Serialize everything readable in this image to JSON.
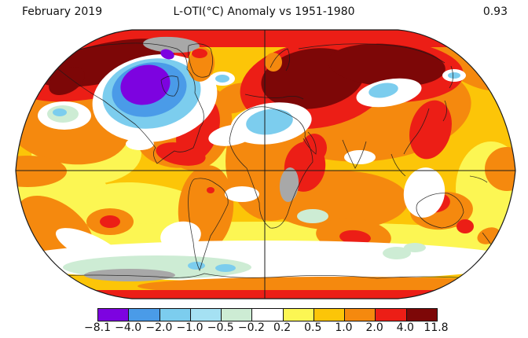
{
  "header": {
    "date_label": "February 2019",
    "title": "L-OTI(°C) Anomaly vs 1951-1980",
    "mean_value": "0.93"
  },
  "palette": {
    "purple": "#7d03e0",
    "blue": "#4a9be8",
    "lightblue": "#7ccdee",
    "paleblue": "#a5e1f3",
    "palegreen": "#cdecd4",
    "white": "#ffffff",
    "yellow": "#fcf653",
    "gold": "#fcc508",
    "orange": "#f5890e",
    "red": "#ec1e16",
    "darkred": "#7d0707",
    "gray": "#a8a8a8",
    "line": "#1a1a1a"
  },
  "colorbar": {
    "tick_labels": [
      "−8.1",
      "−4.0",
      "−2.0",
      "−1.0",
      "−0.5",
      "−0.2",
      "0.2",
      "0.5",
      "1.0",
      "2.0",
      "4.0",
      "11.8"
    ],
    "segment_colors": [
      "#7d03e0",
      "#4a9be8",
      "#7ccdee",
      "#a5e1f3",
      "#cdecd4",
      "#ffffff",
      "#fcf653",
      "#fcc508",
      "#f5890e",
      "#ec1e16",
      "#7d0707"
    ]
  },
  "chart_data": {
    "type": "heatmap",
    "title": "L-OTI(°C) Anomaly vs 1951-1980",
    "period": "February 2019",
    "global_mean_anomaly": 0.93,
    "units": "°C",
    "baseline_period": "1951-1980",
    "projection": "robinson",
    "legend_position": "bottom",
    "scale_boundaries_c": [
      -8.1,
      -4.0,
      -2.0,
      -1.0,
      -0.5,
      -0.2,
      0.2,
      0.5,
      1.0,
      2.0,
      4.0,
      11.8
    ],
    "scale_colors": [
      "#7d03e0",
      "#4a9be8",
      "#7ccdee",
      "#a5e1f3",
      "#cdecd4",
      "#ffffff",
      "#fcf653",
      "#fcc508",
      "#f5890e",
      "#ec1e16",
      "#7d0707"
    ],
    "no_data_color": "#a8a8a8",
    "region_anomalies_estimated_c": [
      {
        "region": "Alaska / Northwest Canada",
        "anomaly": "4 to 11.8"
      },
      {
        "region": "Central Canada / Hudson Bay",
        "anomaly": "-8.1 to -4"
      },
      {
        "region": "Eastern United States / Caribbean",
        "anomaly": "2 to 4"
      },
      {
        "region": "Greenland",
        "anomaly": "1 to 4"
      },
      {
        "region": "Eastern Europe / Western Russia",
        "anomaly": "4 to 11.8"
      },
      {
        "region": "Central Siberia",
        "anomaly": "4 to 11.8"
      },
      {
        "region": "Sahara (North Africa)",
        "anomaly": "-1 to -0.5"
      },
      {
        "region": "East Africa",
        "anomaly": "2 to 4"
      },
      {
        "region": "Central Africa (Congo)",
        "anomaly": "no data"
      },
      {
        "region": "Arctic near pole",
        "anomaly": "no data"
      },
      {
        "region": "Central Asia spot",
        "anomaly": "-0.5 to -0.2"
      },
      {
        "region": "East Asia / China",
        "anomaly": "2 to 4"
      },
      {
        "region": "Central Australia",
        "anomaly": "2 to 4"
      },
      {
        "region": "Tropical oceans",
        "anomaly": "0.5 to 2"
      },
      {
        "region": "Southern Ocean band",
        "anomaly": "-0.5 to 0.2"
      },
      {
        "region": "Antarctic coast band",
        "anomaly": "2 to 4"
      },
      {
        "region": "Sector near Antarctica (60S)",
        "anomaly": "no data"
      }
    ]
  }
}
